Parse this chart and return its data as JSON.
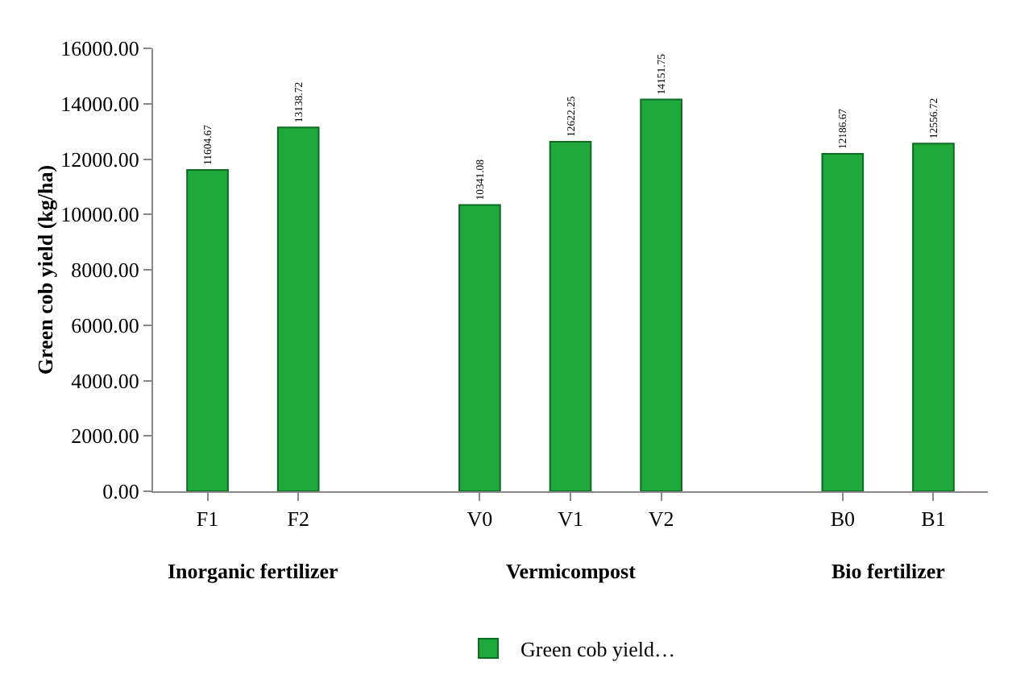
{
  "chart_data": {
    "type": "bar",
    "ylabel": "Green cob yield (kg/ha)",
    "categories": [
      "F1",
      "F2",
      null,
      "V0",
      "V1",
      "V2",
      null,
      "B0",
      "B1"
    ],
    "series": [
      {
        "name": "Green cob yield…",
        "color": "#1fa83c",
        "values": [
          11604.67,
          13138.72,
          null,
          10341.08,
          12622.25,
          14151.75,
          null,
          12186.67,
          12556.72
        ]
      }
    ],
    "ylim": [
      0,
      16000
    ],
    "yticks": [
      {
        "value": 0,
        "label": "0.00"
      },
      {
        "value": 2000,
        "label": "2000.00"
      },
      {
        "value": 4000,
        "label": "4000.00"
      },
      {
        "value": 6000,
        "label": "6000.00"
      },
      {
        "value": 8000,
        "label": "8000.00"
      },
      {
        "value": 10000,
        "label": "10000.00"
      },
      {
        "value": 12000,
        "label": "12000.00"
      },
      {
        "value": 14000,
        "label": "14000.00"
      },
      {
        "value": 16000,
        "label": "16000.00"
      }
    ],
    "data_labels": true,
    "grid": false,
    "legend": "bottom",
    "annotations": [
      "Inorganic fertilizer",
      "Vermicompost",
      "Bio fertilizer"
    ]
  }
}
